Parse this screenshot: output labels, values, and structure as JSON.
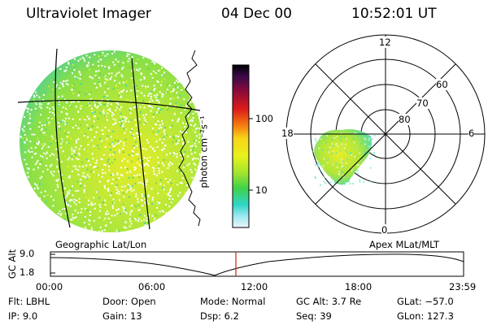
{
  "header": {
    "title": "Ultraviolet Imager",
    "date": "04 Dec 00",
    "time": "10:52:01 UT"
  },
  "colorbar": {
    "unit_label": "photon cm⁻²s⁻¹",
    "ticks": [
      "100",
      "10"
    ]
  },
  "polar_plot": {
    "hour_labels": {
      "top": "12",
      "left": "18",
      "right": "6",
      "bottom": "0"
    },
    "lat_labels": [
      "60",
      "70",
      "80"
    ]
  },
  "projections": {
    "left": "Geographic Lat/Lon",
    "right": "Apex  MLat/MLT"
  },
  "altitude_plot": {
    "axis_label": "GC Alt",
    "y_ticks": [
      "9.0",
      "1.8"
    ],
    "x_ticks": [
      "00:00",
      "06:00",
      "12:00",
      "18:00",
      "23:59"
    ],
    "marker_time": "10:52"
  },
  "info": {
    "filter": "Flt: LBHL",
    "ip": "IP:  9.0",
    "door": "Door: Open",
    "gain": "Gain: 13",
    "mode": "Mode: Normal",
    "dsp": "Dsp:      6.2",
    "gc_alt": "GC Alt: 3.7 Re",
    "seq": "Seq: 39",
    "glat": "GLat: −57.0",
    "glon": "GLon: 127.3"
  },
  "colors": {
    "marker": "#cc2200",
    "aurora_main": "#a6e23a",
    "aurora_edge": "#3fe0c8"
  }
}
